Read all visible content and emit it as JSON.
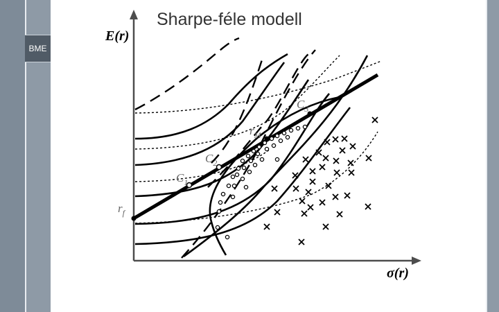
{
  "slide": {
    "title": "Sharpe-féle modell",
    "badge": "BME"
  },
  "colors": {
    "sidebar": "#7e8b98",
    "sidebar_inner": "#8e9aa6",
    "badge": "#505b66",
    "ink": "#000000"
  },
  "diagram": {
    "y_axis_label": "E(r)",
    "x_axis_label": "σ(r)",
    "point_labels": {
      "rf": "r",
      "rf_sub": "f",
      "rm": "r",
      "rm_sub": "M",
      "c1": "C",
      "c1_sub": "1",
      "c2": "C",
      "c2_sub": "2",
      "c3": "C",
      "c3_sub": "3"
    }
  }
}
